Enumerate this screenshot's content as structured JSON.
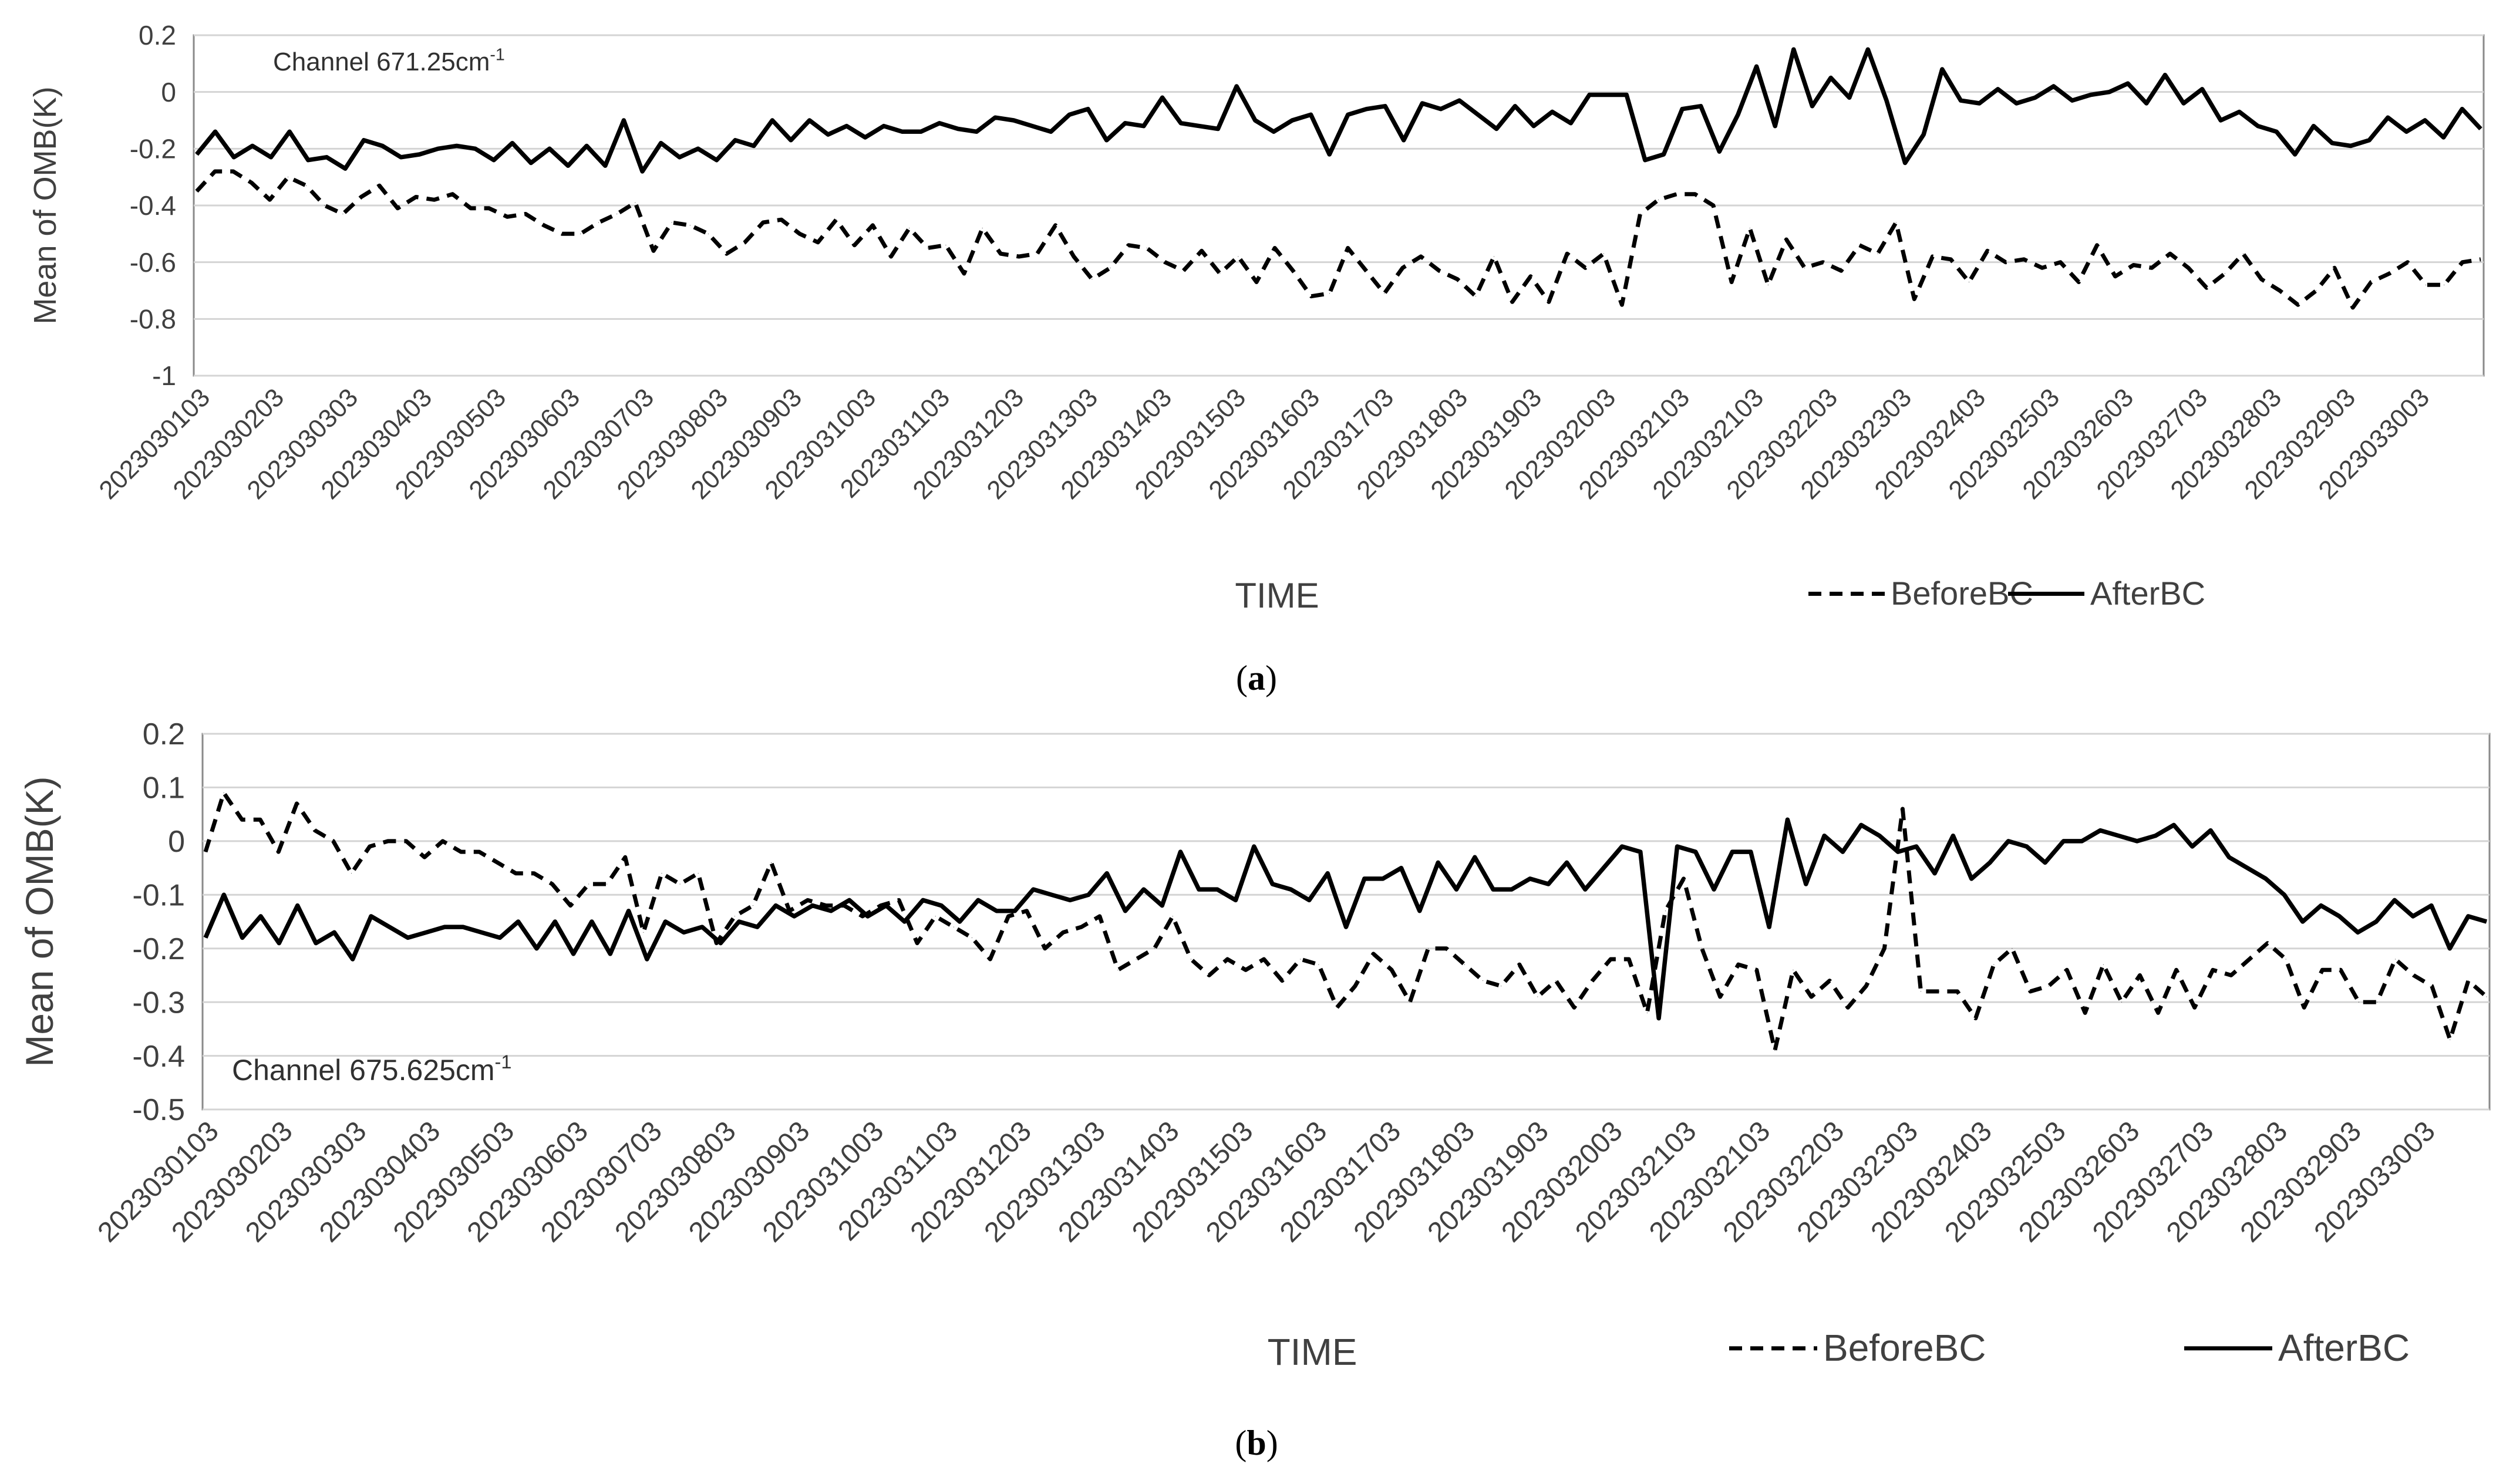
{
  "chart_data": [
    {
      "type": "line",
      "panel": "a",
      "panel_label": "a",
      "annotation": {
        "text": "Channel 671.25cm",
        "superscript": "-1"
      },
      "xlabel": "TIME",
      "ylabel": "Mean of OMB(K)",
      "ylim": [
        -1,
        0.2
      ],
      "yticks": [
        "0.2",
        "0",
        "-0.2",
        "-0.4",
        "-0.6",
        "-0.8",
        "-1"
      ],
      "ytick_values": [
        0.2,
        0,
        -0.2,
        -0.4,
        -0.6,
        -0.8,
        -1
      ],
      "grid": true,
      "legend": {
        "position": "bottom-right",
        "entries": [
          {
            "name": "BeforeBC",
            "style": "dashed"
          },
          {
            "name": "AfterBC",
            "style": "solid"
          }
        ]
      },
      "x_tick_labels": [
        "2023030103",
        "2023030203",
        "2023030303",
        "2023030403",
        "2023030503",
        "2023030603",
        "2023030703",
        "2023030803",
        "2023030903",
        "2023031003",
        "2023031103",
        "2023031203",
        "2023031303",
        "2023031403",
        "2023031503",
        "2023031603",
        "2023031703",
        "2023031803",
        "2023031903",
        "2023032003",
        "2023032103",
        "2023032103",
        "2023032203",
        "2023032303",
        "2023032403",
        "2023032503",
        "2023032603",
        "2023032703",
        "2023032803",
        "2023032903",
        "2023033003"
      ],
      "series": [
        {
          "name": "BeforeBC",
          "style": "dashed",
          "values": [
            -0.35,
            -0.28,
            -0.28,
            -0.32,
            -0.38,
            -0.3,
            -0.33,
            -0.4,
            -0.43,
            -0.37,
            -0.33,
            -0.41,
            -0.37,
            -0.38,
            -0.36,
            -0.41,
            -0.41,
            -0.44,
            -0.43,
            -0.47,
            -0.5,
            -0.5,
            -0.46,
            -0.43,
            -0.39,
            -0.56,
            -0.46,
            -0.47,
            -0.5,
            -0.57,
            -0.53,
            -0.46,
            -0.45,
            -0.5,
            -0.53,
            -0.45,
            -0.54,
            -0.47,
            -0.58,
            -0.48,
            -0.55,
            -0.54,
            -0.64,
            -0.48,
            -0.57,
            -0.58,
            -0.57,
            -0.47,
            -0.58,
            -0.66,
            -0.62,
            -0.54,
            -0.55,
            -0.6,
            -0.63,
            -0.56,
            -0.64,
            -0.58,
            -0.67,
            -0.55,
            -0.63,
            -0.72,
            -0.71,
            -0.55,
            -0.63,
            -0.71,
            -0.62,
            -0.58,
            -0.63,
            -0.66,
            -0.72,
            -0.58,
            -0.74,
            -0.65,
            -0.74,
            -0.57,
            -0.62,
            -0.57,
            -0.75,
            -0.43,
            -0.38,
            -0.36,
            -0.36,
            -0.4,
            -0.67,
            -0.48,
            -0.68,
            -0.52,
            -0.62,
            -0.6,
            -0.63,
            -0.54,
            -0.57,
            -0.46,
            -0.73,
            -0.58,
            -0.59,
            -0.67,
            -0.56,
            -0.6,
            -0.59,
            -0.62,
            -0.6,
            -0.67,
            -0.54,
            -0.65,
            -0.61,
            -0.62,
            -0.57,
            -0.62,
            -0.69,
            -0.64,
            -0.57,
            -0.66,
            -0.7,
            -0.75,
            -0.7,
            -0.62,
            -0.76,
            -0.67,
            -0.64,
            -0.6,
            -0.68,
            -0.68,
            -0.6,
            -0.59
          ]
        },
        {
          "name": "AfterBC",
          "style": "solid",
          "values": [
            -0.22,
            -0.14,
            -0.23,
            -0.19,
            -0.23,
            -0.14,
            -0.24,
            -0.23,
            -0.27,
            -0.17,
            -0.19,
            -0.23,
            -0.22,
            -0.2,
            -0.19,
            -0.2,
            -0.24,
            -0.18,
            -0.25,
            -0.2,
            -0.26,
            -0.19,
            -0.26,
            -0.1,
            -0.28,
            -0.18,
            -0.23,
            -0.2,
            -0.24,
            -0.17,
            -0.19,
            -0.1,
            -0.17,
            -0.1,
            -0.15,
            -0.12,
            -0.16,
            -0.12,
            -0.14,
            -0.14,
            -0.11,
            -0.13,
            -0.14,
            -0.09,
            -0.1,
            -0.12,
            -0.14,
            -0.08,
            -0.06,
            -0.17,
            -0.11,
            -0.12,
            -0.02,
            -0.11,
            -0.12,
            -0.13,
            0.02,
            -0.1,
            -0.14,
            -0.1,
            -0.08,
            -0.22,
            -0.08,
            -0.06,
            -0.05,
            -0.17,
            -0.04,
            -0.06,
            -0.03,
            -0.08,
            -0.13,
            -0.05,
            -0.12,
            -0.07,
            -0.11,
            -0.01,
            -0.01,
            -0.01,
            -0.24,
            -0.22,
            -0.06,
            -0.05,
            -0.21,
            -0.08,
            0.09,
            -0.12,
            0.15,
            -0.05,
            0.05,
            -0.02,
            0.15,
            -0.03,
            -0.25,
            -0.15,
            0.08,
            -0.03,
            -0.04,
            0.01,
            -0.04,
            -0.02,
            0.02,
            -0.03,
            -0.01,
            0.0,
            0.03,
            -0.04,
            0.06,
            -0.04,
            0.01,
            -0.1,
            -0.07,
            -0.12,
            -0.14,
            -0.22,
            -0.12,
            -0.18,
            -0.19,
            -0.17,
            -0.09,
            -0.14,
            -0.1,
            -0.16,
            -0.06,
            -0.13
          ]
        }
      ]
    },
    {
      "type": "line",
      "panel": "b",
      "panel_label": "b",
      "annotation": {
        "text": "Channel 675.625cm",
        "superscript": "-1"
      },
      "xlabel": "TIME",
      "ylabel": "Mean of OMB(K)",
      "ylim": [
        -0.5,
        0.2
      ],
      "yticks": [
        "0.2",
        "0.1",
        "0",
        "-0.1",
        "-0.2",
        "-0.3",
        "-0.4",
        "-0.5"
      ],
      "ytick_values": [
        0.2,
        0.1,
        0,
        -0.1,
        -0.2,
        -0.3,
        -0.4,
        -0.5
      ],
      "grid": true,
      "legend": {
        "position": "bottom-right",
        "entries": [
          {
            "name": "BeforeBC",
            "style": "dashed"
          },
          {
            "name": "AfterBC",
            "style": "solid"
          }
        ]
      },
      "x_tick_labels": [
        "2023030103",
        "2023030203",
        "2023030303",
        "2023030403",
        "2023030503",
        "2023030603",
        "2023030703",
        "2023030803",
        "2023030903",
        "2023031003",
        "2023031103",
        "2023031203",
        "2023031303",
        "2023031403",
        "2023031503",
        "2023031603",
        "2023031703",
        "2023031803",
        "2023031903",
        "2023032003",
        "2023032103",
        "2023032103",
        "2023032203",
        "2023032303",
        "2023032403",
        "2023032503",
        "2023032603",
        "2023032703",
        "2023032803",
        "2023032903",
        "2023033003"
      ],
      "series": [
        {
          "name": "BeforeBC",
          "style": "dashed",
          "values": [
            -0.02,
            0.09,
            0.04,
            0.04,
            -0.02,
            0.07,
            0.02,
            0.0,
            -0.06,
            -0.01,
            0.0,
            0.0,
            -0.03,
            0.0,
            -0.02,
            -0.02,
            -0.04,
            -0.06,
            -0.06,
            -0.08,
            -0.12,
            -0.08,
            -0.08,
            -0.03,
            -0.17,
            -0.06,
            -0.08,
            -0.06,
            -0.19,
            -0.14,
            -0.12,
            -0.04,
            -0.13,
            -0.11,
            -0.12,
            -0.12,
            -0.14,
            -0.12,
            -0.11,
            -0.19,
            -0.14,
            -0.16,
            -0.18,
            -0.22,
            -0.14,
            -0.13,
            -0.2,
            -0.17,
            -0.16,
            -0.14,
            -0.24,
            -0.22,
            -0.2,
            -0.14,
            -0.22,
            -0.25,
            -0.22,
            -0.24,
            -0.22,
            -0.26,
            -0.22,
            -0.23,
            -0.31,
            -0.27,
            -0.21,
            -0.24,
            -0.3,
            -0.2,
            -0.2,
            -0.23,
            -0.26,
            -0.27,
            -0.23,
            -0.29,
            -0.26,
            -0.31,
            -0.26,
            -0.22,
            -0.22,
            -0.32,
            -0.13,
            -0.07,
            -0.2,
            -0.29,
            -0.23,
            -0.24,
            -0.39,
            -0.24,
            -0.29,
            -0.26,
            -0.31,
            -0.27,
            -0.2,
            0.06,
            -0.28,
            -0.28,
            -0.28,
            -0.33,
            -0.23,
            -0.2,
            -0.28,
            -0.27,
            -0.24,
            -0.32,
            -0.23,
            -0.3,
            -0.25,
            -0.32,
            -0.24,
            -0.31,
            -0.24,
            -0.25,
            -0.22,
            -0.19,
            -0.22,
            -0.31,
            -0.24,
            -0.24,
            -0.3,
            -0.3,
            -0.22,
            -0.25,
            -0.27,
            -0.37,
            -0.26,
            -0.29
          ]
        },
        {
          "name": "AfterBC",
          "style": "solid",
          "values": [
            -0.18,
            -0.1,
            -0.18,
            -0.14,
            -0.19,
            -0.12,
            -0.19,
            -0.17,
            -0.22,
            -0.14,
            -0.16,
            -0.18,
            -0.17,
            -0.16,
            -0.16,
            -0.17,
            -0.18,
            -0.15,
            -0.2,
            -0.15,
            -0.21,
            -0.15,
            -0.21,
            -0.13,
            -0.22,
            -0.15,
            -0.17,
            -0.16,
            -0.19,
            -0.15,
            -0.16,
            -0.12,
            -0.14,
            -0.12,
            -0.13,
            -0.11,
            -0.14,
            -0.12,
            -0.15,
            -0.11,
            -0.12,
            -0.15,
            -0.11,
            -0.13,
            -0.13,
            -0.09,
            -0.1,
            -0.11,
            -0.1,
            -0.06,
            -0.13,
            -0.09,
            -0.12,
            -0.02,
            -0.09,
            -0.09,
            -0.11,
            -0.01,
            -0.08,
            -0.09,
            -0.11,
            -0.06,
            -0.16,
            -0.07,
            -0.07,
            -0.05,
            -0.13,
            -0.04,
            -0.09,
            -0.03,
            -0.09,
            -0.09,
            -0.07,
            -0.08,
            -0.04,
            -0.09,
            -0.05,
            -0.01,
            -0.02,
            -0.33,
            -0.01,
            -0.02,
            -0.09,
            -0.02,
            -0.02,
            -0.16,
            0.04,
            -0.08,
            0.01,
            -0.02,
            0.03,
            0.01,
            -0.02,
            -0.01,
            -0.06,
            0.01,
            -0.07,
            -0.04,
            0.0,
            -0.01,
            -0.04,
            0.0,
            0.0,
            0.02,
            0.01,
            0.0,
            0.01,
            0.03,
            -0.01,
            0.02,
            -0.03,
            -0.05,
            -0.07,
            -0.1,
            -0.15,
            -0.12,
            -0.14,
            -0.17,
            -0.15,
            -0.11,
            -0.14,
            -0.12,
            -0.2,
            -0.14,
            -0.15
          ]
        }
      ]
    }
  ]
}
